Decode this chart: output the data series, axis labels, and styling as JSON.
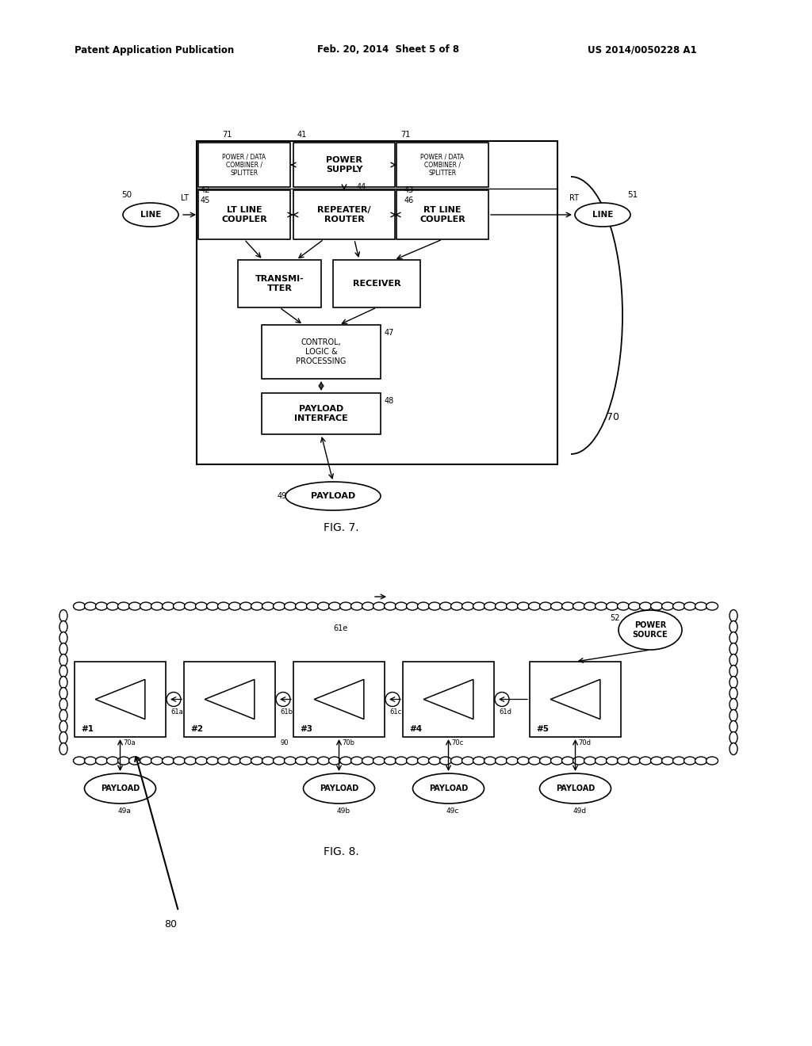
{
  "bg_color": "#ffffff",
  "header_left": "Patent Application Publication",
  "header_mid": "Feb. 20, 2014  Sheet 5 of 8",
  "header_right": "US 2014/0050228 A1",
  "fig7_label": "FIG. 7.",
  "fig8_label": "FIG. 8."
}
